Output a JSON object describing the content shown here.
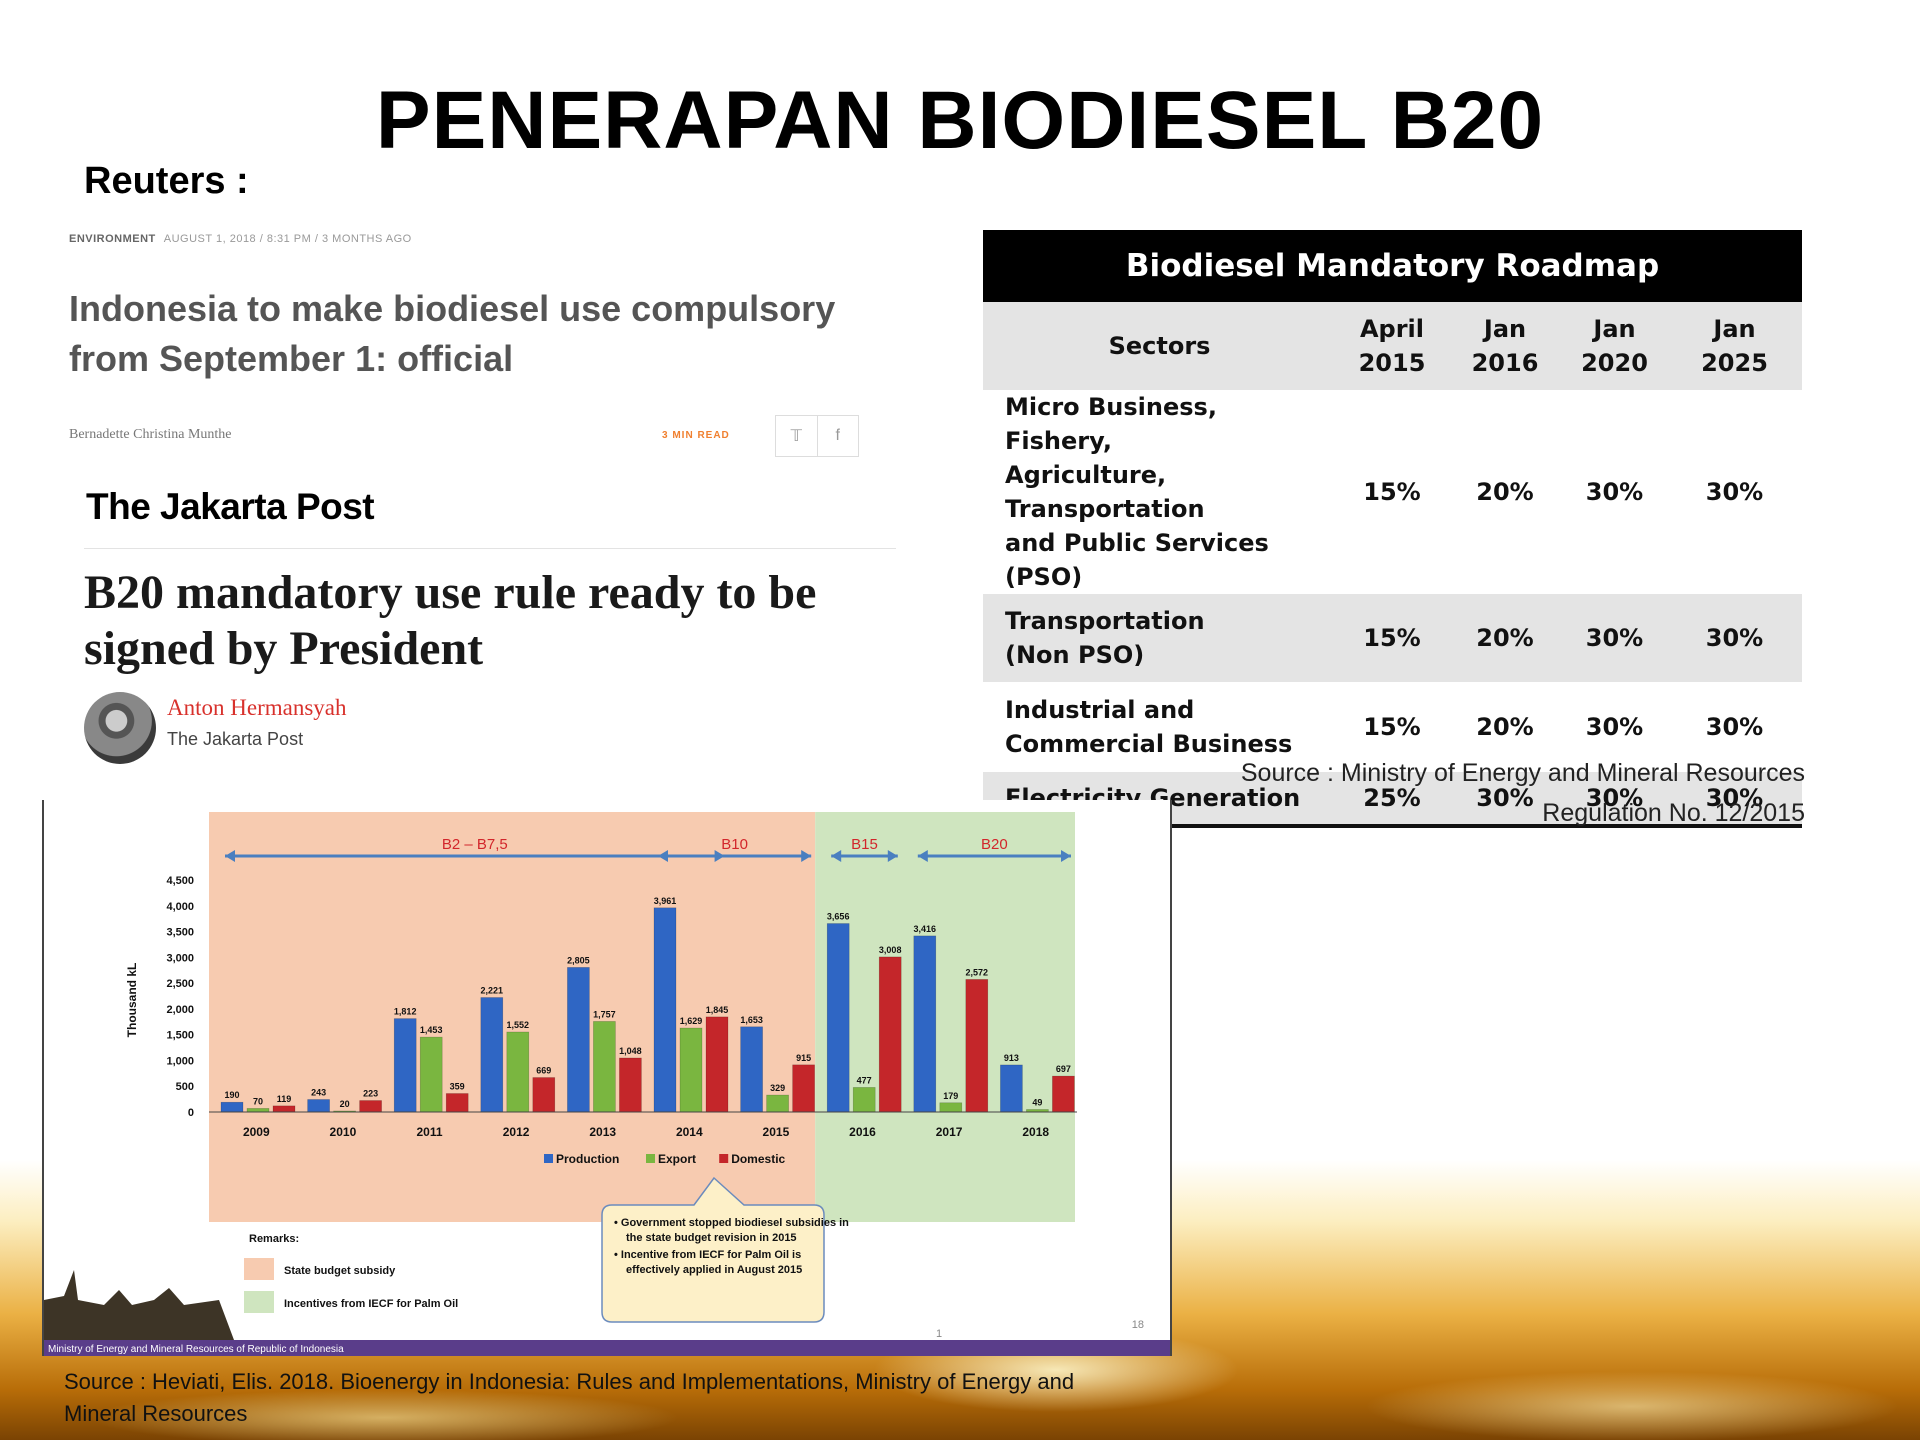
{
  "slide": {
    "title": "PENERAPAN BIODIESEL B20",
    "reuters_label": "Reuters :",
    "reuters": {
      "category": "ENVIRONMENT",
      "meta": "AUGUST 1, 2018 / 8:31 PM / 3 MONTHS AGO",
      "headline": "Indonesia to make biodiesel use compulsory from September 1: official",
      "byline": "Bernadette Christina Munthe",
      "min_read": "3 MIN READ",
      "share_icons": [
        "twitter-icon",
        "facebook-icon"
      ]
    },
    "jakarta_post_label": "The Jakarta Post",
    "jakarta_post": {
      "headline": "B20 mandatory use rule ready to be signed by President",
      "author": "Anton Hermansyah",
      "publication": "The Jakarta Post"
    },
    "roadmap": {
      "title": "Biodiesel Mandatory Roadmap",
      "header_sectors": "Sectors",
      "columns": [
        {
          "line1": "April",
          "line2": "2015"
        },
        {
          "line1": "Jan",
          "line2": "2016"
        },
        {
          "line1": "Jan",
          "line2": "2020"
        },
        {
          "line1": "Jan",
          "line2": "2025"
        }
      ],
      "rows": [
        {
          "sector": [
            "Micro Business, Fishery,",
            "Agriculture, Transportation",
            "and Public Services (PSO)"
          ],
          "values": [
            "15%",
            "20%",
            "30%",
            "30%"
          ]
        },
        {
          "sector": [
            "Transportation",
            "(Non PSO)"
          ],
          "values": [
            "15%",
            "20%",
            "30%",
            "30%"
          ]
        },
        {
          "sector": [
            "Industrial and",
            "Commercial Business"
          ],
          "values": [
            "15%",
            "20%",
            "30%",
            "30%"
          ]
        },
        {
          "sector": [
            "Electricity Generation"
          ],
          "values": [
            "25%",
            "30%",
            "30%",
            "30%"
          ]
        }
      ],
      "source_line1": "Source : Ministry of Energy and Mineral Resources",
      "source_line2": "Regulation No. 12/2015"
    },
    "bottom_source": "Source : Heviati, Elis. 2018. Bioenergy in Indonesia: Rules and Implementations, Ministry of Energy and Mineral Resources"
  },
  "chart_data": {
    "type": "bar",
    "ylabel": "Thousand kL",
    "ylim": [
      0,
      4500
    ],
    "yticks": [
      0,
      500,
      1000,
      1500,
      2000,
      2500,
      3000,
      3500,
      4000,
      4500
    ],
    "ytick_labels": [
      "0",
      "500",
      "1,000",
      "1,500",
      "2,000",
      "2,500",
      "3,000",
      "3,500",
      "4,000",
      "4,500"
    ],
    "categories": [
      "2009",
      "2010",
      "2011",
      "2012",
      "2013",
      "2014",
      "2015",
      "2016",
      "2017",
      "2018"
    ],
    "series": [
      {
        "name": "Production",
        "color": "#2f66c4",
        "values": [
          190,
          243,
          1812,
          2221,
          2805,
          3961,
          1653,
          3656,
          3416,
          913
        ],
        "labels": [
          "190",
          "243",
          "1,812",
          "2,221",
          "2,805",
          "3,961",
          "1,653",
          "3,656",
          "3,416",
          "913"
        ]
      },
      {
        "name": "Export",
        "color": "#7ab640",
        "values": [
          70,
          20,
          1453,
          1552,
          1757,
          1629,
          329,
          477,
          179,
          49
        ],
        "labels": [
          "70",
          "20",
          "1,453",
          "1,552",
          "1,757",
          "1,629",
          "329",
          "477",
          "179",
          "49"
        ]
      },
      {
        "name": "Domestic",
        "color": "#c4262a",
        "values": [
          119,
          223,
          359,
          669,
          1048,
          1845,
          915,
          3008,
          2572,
          697
        ],
        "labels": [
          "119",
          "223",
          "359",
          "669",
          "1,048",
          "1,845",
          "915",
          "3,008",
          "2,572",
          "697"
        ]
      }
    ],
    "phases": [
      {
        "label": "B2 – B7,5",
        "from": "2009",
        "to": "2014"
      },
      {
        "label": "B10",
        "from": "2014",
        "to": "2015"
      },
      {
        "label": "B15",
        "from": "2016",
        "to": "2016"
      },
      {
        "label": "B20",
        "from": "2017",
        "to": "2018"
      }
    ],
    "shaded_regions": [
      {
        "from": "2009",
        "to": "2015",
        "meaning": "State budget subsidy",
        "color": "#f7cbb0"
      },
      {
        "from": "2016",
        "to": "2018",
        "meaning": "Incentives from IECF for Palm Oil",
        "color": "#cfe5bf"
      }
    ],
    "remarks_title": "Remarks:",
    "remarks": [
      {
        "label": "State budget subsidy",
        "color": "#f7cbb0"
      },
      {
        "label": "Incentives from IECF for Palm Oil",
        "color": "#cfe5bf"
      }
    ],
    "callout": [
      "Government stopped biodiesel subsidies in the state budget revision in 2015",
      "Incentive from IECF for Palm Oil is effectively applied in August 2015"
    ],
    "footer_text": "Ministry of Energy and Mineral Resources of Republic of Indonesia",
    "page_number": "18",
    "page_marker": "1",
    "arrow_color": "#4a7fc0",
    "phase_label_color": "#d2262b",
    "legend": "bottom"
  }
}
